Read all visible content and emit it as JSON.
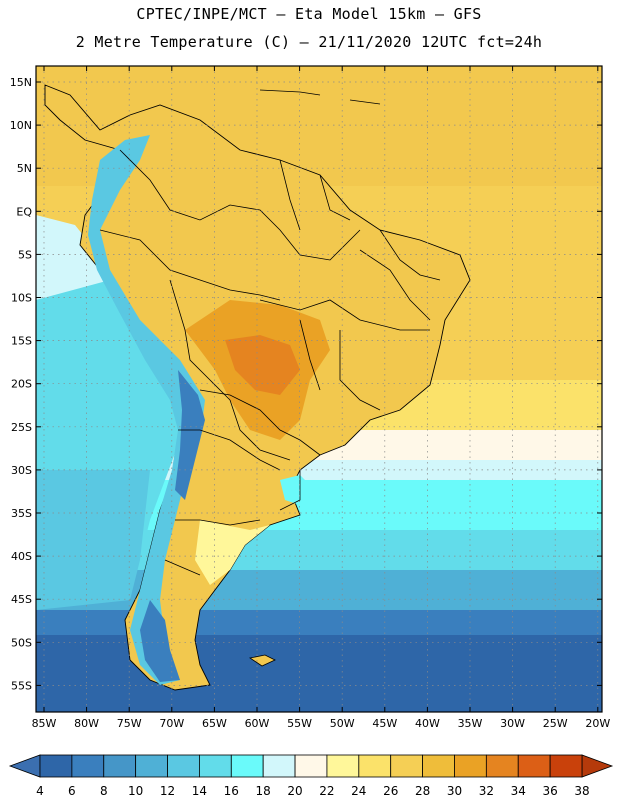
{
  "header": {
    "line1": "CPTEC/INPE/MCT –  Eta Model 15km – GFS",
    "line2": "2 Metre Temperature (C) – 21/11/2020 12UTC fct=24h"
  },
  "axes": {
    "lat_labels": [
      "15N",
      "10N",
      "5N",
      "EQ",
      "5S",
      "10S",
      "15S",
      "20S",
      "25S",
      "30S",
      "35S",
      "40S",
      "45S",
      "50S",
      "55S"
    ],
    "lon_labels": [
      "85W",
      "80W",
      "75W",
      "70W",
      "65W",
      "60W",
      "55W",
      "50W",
      "45W",
      "40W",
      "35W",
      "30W",
      "25W",
      "20W"
    ]
  },
  "legend": {
    "labels": [
      "4",
      "6",
      "8",
      "10",
      "12",
      "14",
      "16",
      "18",
      "20",
      "22",
      "24",
      "26",
      "28",
      "30",
      "32",
      "34",
      "36",
      "38"
    ],
    "colors": [
      "#2e66a8",
      "#3a7fbe",
      "#4596c8",
      "#4fb0d6",
      "#5ac8e2",
      "#62dcea",
      "#6afafa",
      "#d2f7fb",
      "#fff8e8",
      "#fff79a",
      "#fbe26a",
      "#f5cf55",
      "#efbd3a",
      "#eaa225",
      "#e58420",
      "#dc5f16",
      "#c9410b"
    ],
    "low_arrow_color": "#3b6fb0",
    "high_arrow_color": "#b53a0b"
  },
  "colors": {
    "ocean_tropical": "#f5cf55",
    "ocean_mid": "#fff8e8",
    "ocean_cool": "#62dcea",
    "ocean_cold": "#4fb0d6",
    "ocean_polar": "#2e66a8",
    "land_base": "#f2c84e",
    "land_hot": "#eaa225",
    "andes": "#5ac8e2",
    "andes_high": "#3a7fbe",
    "border": "#000000",
    "grid": "#9a9a9a"
  }
}
